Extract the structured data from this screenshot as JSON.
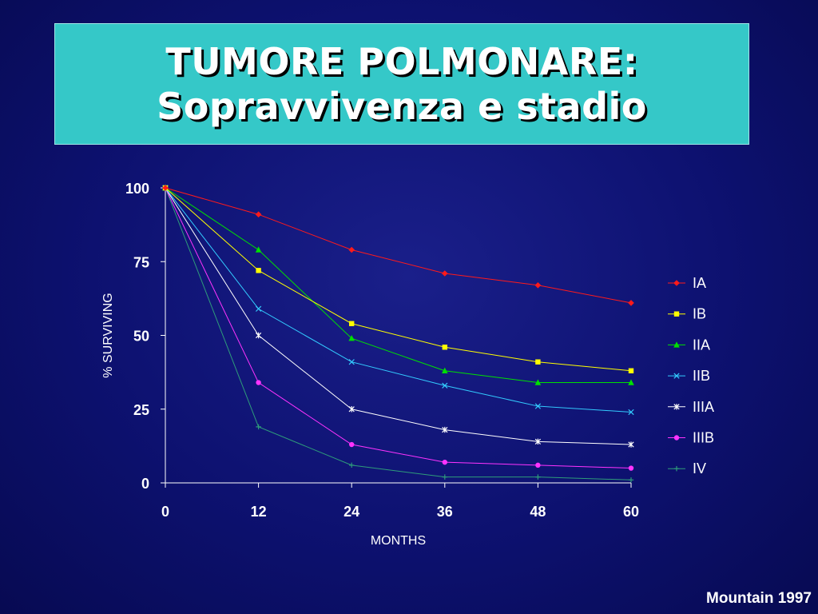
{
  "slide": {
    "title_line1": "TUMORE POLMONARE:",
    "title_line2": "Sopravvivenza e stadio",
    "credit": "Mountain 1997"
  },
  "chart_data": {
    "type": "line",
    "title": "",
    "xlabel": "MONTHS",
    "ylabel": "% SURVIVING",
    "x": [
      0,
      12,
      24,
      36,
      48,
      60
    ],
    "xticks": [
      "0",
      "12",
      "24",
      "36",
      "48",
      "60"
    ],
    "yticks": [
      "0",
      "25",
      "50",
      "75",
      "100"
    ],
    "xlim": [
      0,
      60
    ],
    "ylim": [
      0,
      100
    ],
    "grid": false,
    "legend_position": "right",
    "series": [
      {
        "name": "IA",
        "color": "#ff1a1a",
        "marker": "diamond",
        "values": [
          100,
          91,
          79,
          71,
          67,
          61
        ]
      },
      {
        "name": "IB",
        "color": "#ffff00",
        "marker": "square",
        "values": [
          100,
          72,
          54,
          46,
          41,
          38
        ]
      },
      {
        "name": "IIA",
        "color": "#00e000",
        "marker": "triangle",
        "values": [
          100,
          79,
          49,
          38,
          34,
          34
        ]
      },
      {
        "name": "IIB",
        "color": "#33ccff",
        "marker": "x",
        "values": [
          100,
          59,
          41,
          33,
          26,
          24
        ]
      },
      {
        "name": "IIIA",
        "color": "#ffffff",
        "marker": "star",
        "values": [
          100,
          50,
          25,
          18,
          14,
          13
        ]
      },
      {
        "name": "IIIB",
        "color": "#ff33ff",
        "marker": "circle",
        "values": [
          100,
          34,
          13,
          7,
          6,
          5
        ]
      },
      {
        "name": "IV",
        "color": "#2e9c7a",
        "marker": "plus",
        "values": [
          100,
          19,
          6,
          2,
          2,
          1
        ]
      }
    ]
  }
}
